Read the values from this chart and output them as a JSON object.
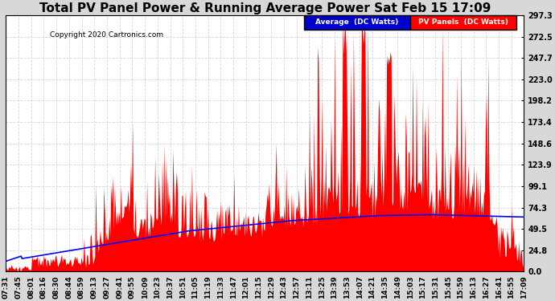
{
  "title": "Total PV Panel Power & Running Average Power Sat Feb 15 17:09",
  "copyright": "Copyright 2020 Cartronics.com",
  "yticks": [
    0.0,
    24.8,
    49.5,
    74.3,
    99.1,
    123.9,
    148.6,
    173.4,
    198.2,
    223.0,
    247.7,
    272.5,
    297.3
  ],
  "ymax": 297.3,
  "ymin": 0.0,
  "xtick_labels": [
    "07:31",
    "07:45",
    "08:01",
    "08:16",
    "08:30",
    "08:44",
    "08:59",
    "09:13",
    "09:27",
    "09:41",
    "09:55",
    "10:09",
    "10:23",
    "10:37",
    "10:51",
    "11:05",
    "11:19",
    "11:33",
    "11:47",
    "12:01",
    "12:15",
    "12:29",
    "12:43",
    "12:57",
    "13:11",
    "13:25",
    "13:39",
    "13:53",
    "14:07",
    "14:21",
    "14:35",
    "14:49",
    "15:03",
    "15:17",
    "15:31",
    "15:45",
    "15:59",
    "16:13",
    "16:27",
    "16:41",
    "16:55",
    "17:09"
  ],
  "background_color": "#d8d8d8",
  "plot_bg_color": "#ffffff",
  "grid_color": "#cccccc",
  "pv_color": "#ff0000",
  "avg_color": "#0000ff",
  "title_fontsize": 11,
  "legend_avg_label": "Average  (DC Watts)",
  "legend_pv_label": "PV Panels  (DC Watts)",
  "legend_avg_bg": "#0000cc",
  "legend_pv_bg": "#ff0000"
}
